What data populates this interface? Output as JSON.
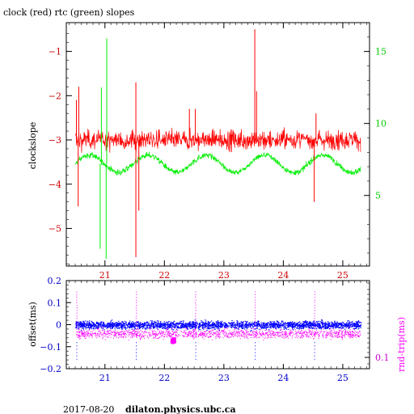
{
  "title": "clock (red) rtc (green) slopes",
  "footer": {
    "date": "2017-08-20",
    "host": "dilaton.physics.ubc.ca"
  },
  "colors": {
    "clock": "#ff0000",
    "rtc": "#00ee00",
    "offset": "#0000ff",
    "rndtrip": "#ff00ff",
    "axis": "#000000",
    "left_tick_top": "#cc0000",
    "right_tick_top": "#00cc00",
    "left_tick_bottom": "#0000cc",
    "right_tick_bottom": "#cc00cc"
  },
  "chart_data": [
    {
      "type": "line",
      "title": "clock (red) rtc (green) slopes",
      "ylabel": "clockslope",
      "x_ticks": [
        "21",
        "22",
        "23",
        "24",
        "25"
      ],
      "xlim": [
        20.35,
        25.45
      ],
      "ylim": [
        -5.85,
        -0.35
      ],
      "y_ticks": [
        "-1",
        "-2",
        "-3",
        "-4",
        "-5"
      ],
      "y2lim": [
        0.1,
        17.0
      ],
      "y2_ticks": [
        "5",
        "10",
        "15"
      ],
      "grid": false,
      "series": [
        {
          "name": "clock",
          "axis": "left",
          "baseline": -3.0,
          "noise_amp": 0.38,
          "x_range": [
            20.5,
            25.3
          ],
          "spikes": [
            [
              20.52,
              -2.1
            ],
            [
              20.55,
              -4.5
            ],
            [
              20.56,
              -1.8
            ],
            [
              21.52,
              -1.7
            ],
            [
              21.52,
              -5.65
            ],
            [
              21.57,
              -4.6
            ],
            [
              22.42,
              -2.3
            ],
            [
              22.52,
              -2.3
            ],
            [
              23.52,
              -0.5
            ],
            [
              23.55,
              -1.9
            ],
            [
              24.52,
              -4.4
            ],
            [
              24.55,
              -2.4
            ]
          ]
        },
        {
          "name": "rtc",
          "axis": "right",
          "baseline": 7.2,
          "noise_amp": 0.35,
          "x_range": [
            20.5,
            25.3
          ],
          "spikes": [
            [
              20.92,
              1.3
            ],
            [
              20.94,
              12.5
            ],
            [
              21.02,
              0.6
            ],
            [
              21.03,
              15.9
            ]
          ]
        }
      ]
    },
    {
      "type": "scatter",
      "ylabel": "offset(ms)",
      "y2label": "rnd-trip(ms)",
      "x_ticks": [
        "21",
        "22",
        "23",
        "24",
        "25"
      ],
      "xlim": [
        20.35,
        25.45
      ],
      "ylim": [
        -0.2,
        0.2
      ],
      "y_ticks": [
        "0.2",
        "0.1",
        "0",
        "-0.1",
        "-0.2"
      ],
      "y2_ticks": [
        "0.1"
      ],
      "y2_scale": "log",
      "series": [
        {
          "name": "offset",
          "axis": "left",
          "center": 0.0,
          "spread": 0.03,
          "x_range": [
            20.5,
            25.3
          ]
        },
        {
          "name": "rnd-trip",
          "axis": "right",
          "center": -0.04,
          "spread": 0.035,
          "x_range": [
            20.5,
            25.3
          ],
          "spikes_x": [
            20.52,
            21.52,
            22.52,
            23.52,
            24.52
          ]
        }
      ]
    }
  ]
}
